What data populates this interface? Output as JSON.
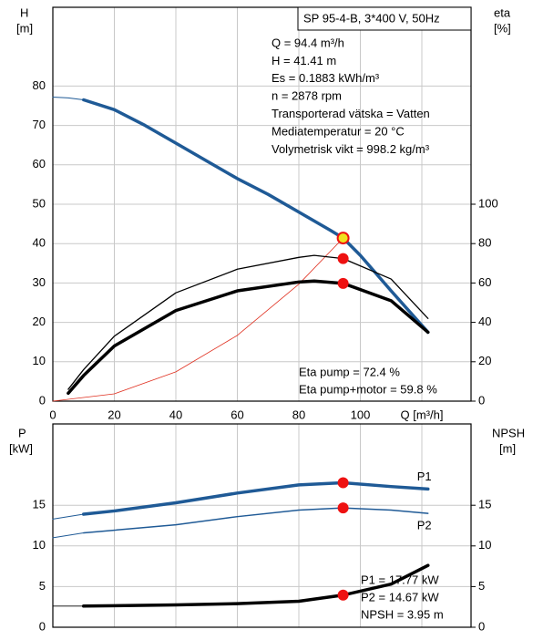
{
  "chart_data": [
    {
      "type": "line",
      "title": "SP 95-4-B, 3*400 V, 50Hz",
      "ylabel": [
        "H",
        "[m]"
      ],
      "y2label": [
        "eta",
        "[%]"
      ],
      "info": [
        "Q = 94.4 m³/h",
        "H = 41.41 m",
        "Es = 0.1883 kWh/m³",
        "n = 2878 rpm",
        "Transporterad vätska = Vatten",
        "Mediatemperatur = 20 °C",
        "Volymetrisk vikt = 998.2 kg/m³"
      ],
      "annotations": [
        "Eta pump = 72.4 %",
        "Eta pump+motor = 59.8 %"
      ],
      "xlim": [
        0,
        136
      ],
      "xticks": [
        0,
        20,
        40,
        60,
        80,
        100,
        {
          "value": 120,
          "label": "Q [m³/h]"
        }
      ],
      "ylim": [
        0,
        100
      ],
      "yticks": [
        0,
        10,
        20,
        30,
        40,
        50,
        60,
        70,
        80
      ],
      "y2lim": [
        0,
        200
      ],
      "y2ticks": [
        0,
        20,
        40,
        60,
        80,
        100
      ],
      "grid": true,
      "series": [
        {
          "color": "#1f5a96",
          "width": 1,
          "x": [
            0,
            5,
            10
          ],
          "values": [
            77.2,
            77,
            76.5
          ]
        },
        {
          "color": "#1f5a96",
          "width": 3.5,
          "x": [
            10,
            20,
            30,
            40,
            50,
            60,
            70,
            80,
            90,
            94.4,
            100,
            110,
            122
          ],
          "values": [
            76.5,
            74,
            70,
            65.5,
            61,
            56.5,
            52.5,
            48,
            43.5,
            41.41,
            37,
            28,
            17.5
          ]
        },
        {
          "color": "#e03020",
          "width": 0.8,
          "x": [
            0,
            20,
            40,
            60,
            80,
            94.4
          ],
          "values": [
            0,
            1.86,
            7.43,
            16.7,
            29.7,
            41.41
          ]
        },
        {
          "color": "#000000",
          "width": 1.3,
          "axis": "y2",
          "x": [
            5,
            10,
            20,
            40,
            60,
            80,
            85,
            94.4,
            110,
            122
          ],
          "values": [
            6,
            16,
            33,
            55,
            67,
            73,
            74,
            72.4,
            62,
            42
          ]
        },
        {
          "color": "#000000",
          "width": 3.5,
          "axis": "y2",
          "x": [
            5,
            10,
            20,
            40,
            60,
            80,
            85,
            94.4,
            110,
            122
          ],
          "values": [
            4,
            13,
            28,
            46,
            56,
            60.5,
            61,
            59.8,
            51,
            35
          ]
        }
      ],
      "points": [
        {
          "x": 94.4,
          "y": 41.41,
          "color": "#f0e020"
        },
        {
          "x": 94.4,
          "y": 72.4,
          "axis": "y2",
          "color": "#ee1111"
        },
        {
          "x": 94.4,
          "y": 59.8,
          "axis": "y2",
          "color": "#ee1111"
        }
      ]
    },
    {
      "type": "line",
      "ylabel": [
        "P",
        "[kW]"
      ],
      "y2label": [
        "NPSH",
        "[m]"
      ],
      "annotations": [
        "P1 = 17.77 kW",
        "P2 = 14.67 kW",
        "NPSH = 3.95 m"
      ],
      "xlim": [
        0,
        136
      ],
      "xgrid": [
        20,
        40,
        60,
        80,
        100,
        120
      ],
      "ylim": [
        0,
        25
      ],
      "yticks": [
        0,
        5,
        10,
        15
      ],
      "y2lim": [
        0,
        25
      ],
      "y2ticks": [
        0,
        5,
        10,
        15
      ],
      "grid": true,
      "series": [
        {
          "color": "#1f5a96",
          "width": 1,
          "x": [
            0,
            10
          ],
          "values": [
            13.3,
            13.9
          ]
        },
        {
          "name": "P1",
          "color": "#1f5a96",
          "width": 3.5,
          "x": [
            10,
            20,
            40,
            60,
            80,
            94.4,
            110,
            122
          ],
          "values": [
            13.9,
            14.3,
            15.3,
            16.5,
            17.5,
            17.77,
            17.3,
            17.0
          ]
        },
        {
          "color": "#1f5a96",
          "width": 1,
          "x": [
            0,
            10
          ],
          "values": [
            11.0,
            11.6
          ]
        },
        {
          "name": "P2",
          "color": "#1f5a96",
          "width": 1.5,
          "x": [
            10,
            40,
            60,
            80,
            94.4,
            110,
            122
          ],
          "values": [
            11.6,
            12.6,
            13.6,
            14.4,
            14.67,
            14.4,
            14.0
          ]
        },
        {
          "color": "#000000",
          "width": 0.8,
          "axis": "y2",
          "x": [
            0,
            10
          ],
          "values": [
            2.6,
            2.6
          ]
        },
        {
          "color": "#000000",
          "width": 3.5,
          "axis": "y2",
          "x": [
            10,
            40,
            60,
            80,
            94.4,
            110,
            122
          ],
          "values": [
            2.6,
            2.75,
            2.9,
            3.2,
            3.95,
            5.3,
            7.6
          ]
        }
      ],
      "points": [
        {
          "x": 94.4,
          "y": 17.77,
          "color": "#ee1111"
        },
        {
          "x": 94.4,
          "y": 14.67,
          "color": "#ee1111"
        },
        {
          "x": 94.4,
          "y": 3.95,
          "axis": "y2",
          "color": "#ee1111"
        }
      ]
    }
  ]
}
